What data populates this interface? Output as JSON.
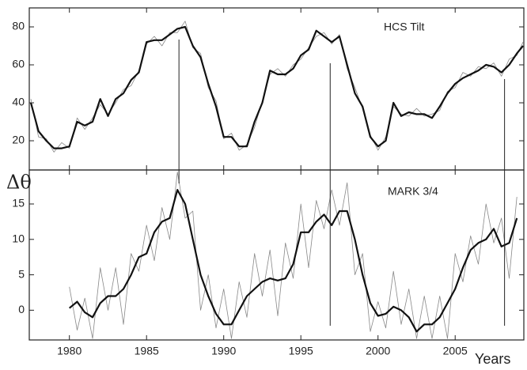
{
  "chart_data": [
    {
      "type": "line",
      "label": "HCS Tilt",
      "x": [
        1977.5,
        1978,
        1978.5,
        1979,
        1979.5,
        1980,
        1980.5,
        1981,
        1981.5,
        1982,
        1982.5,
        1983,
        1983.5,
        1984,
        1984.5,
        1985,
        1985.5,
        1986,
        1986.5,
        1987,
        1987.5,
        1988,
        1988.5,
        1989,
        1989.5,
        1990,
        1990.5,
        1991,
        1991.5,
        1992,
        1992.5,
        1993,
        1993.5,
        1994,
        1994.5,
        1995,
        1995.5,
        1996,
        1996.5,
        1997,
        1997.5,
        1998,
        1998.5,
        1999,
        1999.5,
        2000,
        2000.5,
        2001,
        2001.5,
        2002,
        2002.5,
        2003,
        2003.5,
        2004,
        2004.5,
        2005,
        2005.5,
        2006,
        2006.5,
        2007,
        2007.5,
        2008,
        2008.5,
        2009,
        2009.4
      ],
      "series": [
        {
          "color": "#888888",
          "width": 0.8,
          "values": [
            42,
            22,
            21,
            14,
            19,
            16,
            32,
            26,
            32,
            39,
            34,
            40,
            47,
            49,
            57,
            71,
            75,
            70,
            77,
            77,
            83,
            69,
            66,
            48,
            41,
            21,
            24,
            15,
            18,
            27,
            41,
            55,
            58,
            54,
            60,
            63,
            69,
            75,
            77,
            71,
            76,
            58,
            48,
            37,
            23,
            15,
            22,
            38,
            34,
            33,
            37,
            33,
            34,
            36,
            46,
            48,
            56,
            54,
            59,
            58,
            61,
            54,
            63,
            65,
            72
          ]
        },
        {
          "color": "#111111",
          "width": 2.2,
          "values": [
            40,
            25,
            20,
            16,
            16,
            17,
            30,
            28,
            30,
            42,
            33,
            42,
            45,
            52,
            56,
            72,
            73,
            73,
            76,
            79,
            80,
            70,
            64,
            50,
            38,
            22,
            22,
            17,
            17,
            30,
            40,
            57,
            55,
            55,
            58,
            65,
            68,
            78,
            75,
            72,
            75,
            60,
            45,
            38,
            22,
            17,
            20,
            40,
            33,
            35,
            34,
            34,
            32,
            38,
            45,
            50,
            53,
            55,
            57,
            60,
            59,
            56,
            60,
            66,
            70
          ]
        }
      ],
      "xlim": [
        1977.4,
        2009.45
      ],
      "xticks": [
        1980,
        1985,
        1990,
        1995,
        2000,
        2005
      ],
      "ylim": [
        4.6,
        90
      ],
      "yticks": [
        20,
        40,
        60,
        80
      ],
      "vlines": [
        1987.1,
        1996.9,
        2008.2
      ]
    },
    {
      "type": "line",
      "label": "MARK 3/4",
      "ylabel": "Δθ",
      "xlabel": "Years",
      "x": [
        1980,
        1980.5,
        1981,
        1981.5,
        1982,
        1982.5,
        1983,
        1983.5,
        1984,
        1984.5,
        1985,
        1985.5,
        1986,
        1986.5,
        1987,
        1987.5,
        1988,
        1988.5,
        1989,
        1989.5,
        1990,
        1990.5,
        1991,
        1991.5,
        1992,
        1992.5,
        1993,
        1993.5,
        1994,
        1994.5,
        1995,
        1995.5,
        1996,
        1996.5,
        1997,
        1997.5,
        1998,
        1998.5,
        1999,
        1999.5,
        2000,
        2000.5,
        2001,
        2001.5,
        2002,
        2002.5,
        2003,
        2003.5,
        2004,
        2004.5,
        2005,
        2005.5,
        2006,
        2006.5,
        2007,
        2007.5,
        2008,
        2008.5,
        2009
      ],
      "series": [
        {
          "color": "#888888",
          "width": 0.8,
          "values": [
            3.3,
            -2.8,
            1.7,
            -4,
            6,
            0,
            6,
            -2,
            8,
            5.5,
            12,
            7,
            14.5,
            10,
            19.5,
            13,
            14,
            0,
            5,
            -2.5,
            3,
            -4,
            4,
            -1,
            8,
            2,
            8.5,
            -0.8,
            9.5,
            4.5,
            15,
            6,
            15.5,
            11.5,
            17,
            12,
            18,
            5,
            8,
            -3,
            1.2,
            -2.5,
            5.5,
            -2,
            3,
            -4,
            2,
            -4,
            2,
            -4,
            8,
            4,
            10.5,
            6.5,
            15,
            9.5,
            13,
            4.5,
            16
          ]
        },
        {
          "color": "#111111",
          "width": 2.2,
          "values": [
            0.3,
            1.2,
            -0.3,
            -1,
            1,
            2,
            2,
            3,
            5,
            7.5,
            8,
            11,
            12.5,
            13,
            17,
            15,
            10,
            5,
            2,
            -0.5,
            -2,
            -2,
            0,
            2,
            3,
            4,
            4.5,
            4.2,
            4.5,
            6.5,
            11,
            11,
            12.5,
            13.5,
            12,
            14,
            14,
            10,
            5,
            1,
            -0.8,
            -0.5,
            0.5,
            0,
            -1,
            -3,
            -2,
            -2,
            -1,
            1,
            3,
            6,
            8.5,
            9.5,
            10,
            11.5,
            9,
            9.5,
            13
          ]
        }
      ],
      "xlim": [
        1977.4,
        2009.45
      ],
      "xticks": [
        1980,
        1985,
        1990,
        1995,
        2000,
        2005
      ],
      "ylim": [
        -4.2,
        19.8
      ],
      "yticks": [
        0,
        5,
        10,
        15
      ]
    }
  ]
}
